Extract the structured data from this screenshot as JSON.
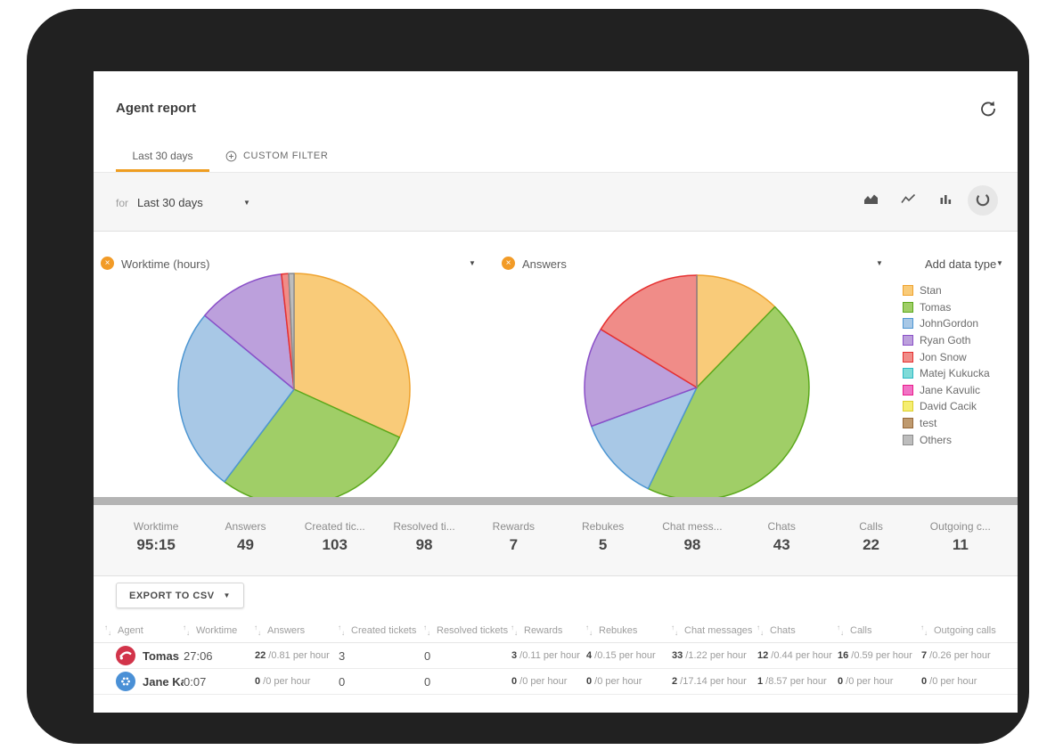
{
  "page": {
    "title": "Agent report"
  },
  "tabs": [
    {
      "label": "Last 30 days",
      "active": true
    },
    {
      "label": "CUSTOM FILTER",
      "active": false
    }
  ],
  "filter": {
    "prefix": "for",
    "selected": "Last 30 days"
  },
  "view_modes": [
    {
      "name": "area",
      "active": false
    },
    {
      "name": "line",
      "active": false
    },
    {
      "name": "bar",
      "active": false
    },
    {
      "name": "pie",
      "active": true
    }
  ],
  "charts": [
    {
      "label": "Worktime (hours)"
    },
    {
      "label": "Answers"
    }
  ],
  "add_data_type": "Add data type",
  "legend": [
    {
      "name": "Stan",
      "fill": "#F9CB79",
      "stroke": "#EFA22D"
    },
    {
      "name": "Tomas",
      "fill": "#A0CE67",
      "stroke": "#5BA81C"
    },
    {
      "name": "JohnGordon",
      "fill": "#A8C8E6",
      "stroke": "#4D96D2"
    },
    {
      "name": "Ryan Goth",
      "fill": "#BCA0DC",
      "stroke": "#8A4FC8"
    },
    {
      "name": "Jon Snow",
      "fill": "#F08C88",
      "stroke": "#E63030"
    },
    {
      "name": "Matej Kukucka",
      "fill": "#7FDBD8",
      "stroke": "#2BB8C4"
    },
    {
      "name": "Jane Kavulic",
      "fill": "#F173C5",
      "stroke": "#E91C8B"
    },
    {
      "name": "David Cacik",
      "fill": "#F5EE71",
      "stroke": "#DCCE2E"
    },
    {
      "name": "test",
      "fill": "#BF9A6F",
      "stroke": "#96683A"
    },
    {
      "name": "Others",
      "fill": "#BDBDBD",
      "stroke": "#8C8C8C"
    }
  ],
  "chart_data": [
    {
      "type": "pie",
      "title": "Worktime (hours)",
      "unit": "hours",
      "total_label": "95:15",
      "slices": [
        {
          "name": "Stan",
          "value": 30.3
        },
        {
          "name": "Tomas",
          "value": 27.1
        },
        {
          "name": "JohnGordon",
          "value": 24.5
        },
        {
          "name": "Ryan Goth",
          "value": 11.7
        },
        {
          "name": "Jon Snow",
          "value": 0.95
        },
        {
          "name": "Others",
          "value": 0.7
        }
      ]
    },
    {
      "type": "pie",
      "title": "Answers",
      "total": 49,
      "slices": [
        {
          "name": "Stan",
          "value": 6
        },
        {
          "name": "Tomas",
          "value": 22
        },
        {
          "name": "JohnGordon",
          "value": 6
        },
        {
          "name": "Ryan Goth",
          "value": 7
        },
        {
          "name": "Jon Snow",
          "value": 8
        },
        {
          "name": "Others",
          "value": 0
        }
      ]
    }
  ],
  "summary": [
    {
      "label": "Worktime",
      "value": "95:15"
    },
    {
      "label": "Answers",
      "value": "49"
    },
    {
      "label": "Created tic...",
      "value": "103"
    },
    {
      "label": "Resolved ti...",
      "value": "98"
    },
    {
      "label": "Rewards",
      "value": "7"
    },
    {
      "label": "Rebukes",
      "value": "5"
    },
    {
      "label": "Chat mess...",
      "value": "98"
    },
    {
      "label": "Chats",
      "value": "43"
    },
    {
      "label": "Calls",
      "value": "22"
    },
    {
      "label": "Outgoing c...",
      "value": "11"
    }
  ],
  "export_button": {
    "label": "EXPORT TO CSV"
  },
  "table": {
    "columns": [
      "Agent",
      "Worktime",
      "Answers",
      "Created tickets",
      "Resolved tickets",
      "Rewards",
      "Rebukes",
      "Chat messages",
      "Chats",
      "Calls",
      "Outgoing calls"
    ],
    "rows": [
      {
        "agent": "Tomas",
        "avatar": "red-badge",
        "avatar_color": "#D2344A",
        "worktime": "27:06",
        "cells": [
          {
            "value": "22",
            "rate": "0.81 per hour"
          },
          {
            "value": "3"
          },
          {
            "value": "0"
          },
          {
            "value": "3",
            "rate": "0.11 per hour"
          },
          {
            "value": "4",
            "rate": "0.15 per hour"
          },
          {
            "value": "33",
            "rate": "1.22 per hour"
          },
          {
            "value": "12",
            "rate": "0.44 per hour"
          },
          {
            "value": "16",
            "rate": "0.59 per hour"
          },
          {
            "value": "7",
            "rate": "0.26 per hour"
          }
        ]
      },
      {
        "agent": "Jane Kav",
        "avatar": "blue-dots",
        "avatar_color": "#4A90D6",
        "worktime": "0:07",
        "cells": [
          {
            "value": "0",
            "rate": "0 per hour"
          },
          {
            "value": "0"
          },
          {
            "value": "0"
          },
          {
            "value": "0",
            "rate": "0 per hour"
          },
          {
            "value": "0",
            "rate": "0 per hour"
          },
          {
            "value": "2",
            "rate": "17.14 per hour"
          },
          {
            "value": "1",
            "rate": "8.57 per hour"
          },
          {
            "value": "0",
            "rate": "0 per hour"
          },
          {
            "value": "0",
            "rate": "0 per hour"
          }
        ]
      }
    ]
  }
}
